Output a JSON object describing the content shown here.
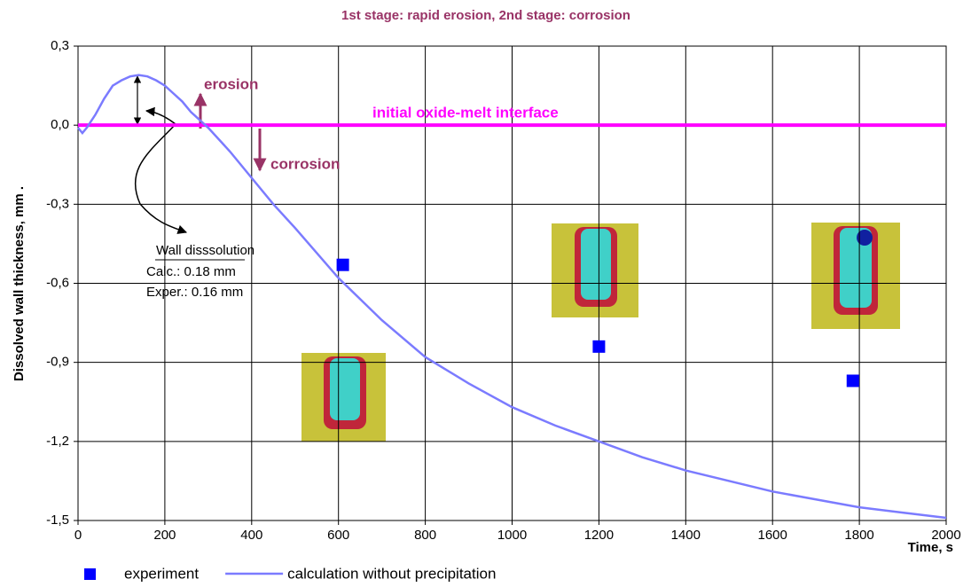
{
  "chart_data": {
    "type": "line",
    "title": "1st stage: rapid erosion,    2nd stage: corrosion",
    "y_label": "Dissolved wall thickness, mm   .",
    "x_label": "Time, s",
    "xlim": [
      0,
      2000
    ],
    "xticks": [
      0,
      200,
      400,
      600,
      800,
      1000,
      1200,
      1400,
      1600,
      1800,
      2000
    ],
    "ylim": [
      -1.5,
      0.3
    ],
    "yticks": [
      {
        "value": 0.3,
        "label": "0,3"
      },
      {
        "value": 0,
        "label": "0,0"
      },
      {
        "value": -0.3,
        "label": "-0,3"
      },
      {
        "value": -0.6,
        "label": "-0,6"
      },
      {
        "value": -0.9,
        "label": "-0,9"
      },
      {
        "value": -1.2,
        "label": "-1,2"
      },
      {
        "value": -1.5,
        "label": "-1,5"
      }
    ],
    "grid": true,
    "reference_line": {
      "value": 0,
      "label": "initial oxide-melt interface",
      "color": "#ff00ff"
    },
    "annotations": [
      "erosion",
      "corrosion",
      "Wall disssolution",
      "Calc.: 0.18 mm",
      "Exper.: 0.16 mm"
    ],
    "series": [
      {
        "name": "experiment",
        "type": "scatter",
        "color": "#0000ff",
        "x": [
          610,
          1200,
          1785
        ],
        "values": [
          -0.53,
          -0.84,
          -0.97
        ]
      },
      {
        "name": "calculation without precipitation",
        "type": "line",
        "color": "#7b7bff",
        "x": [
          0,
          10,
          20,
          40,
          60,
          80,
          100,
          120,
          140,
          160,
          180,
          200,
          220,
          240,
          260,
          280,
          300,
          350,
          400,
          450,
          500,
          600,
          700,
          800,
          900,
          1000,
          1100,
          1200,
          1300,
          1400,
          1500,
          1600,
          1700,
          1800,
          1900,
          2000
        ],
        "values": [
          -0.01,
          -0.03,
          -0.01,
          0.04,
          0.1,
          0.15,
          0.17,
          0.185,
          0.19,
          0.185,
          0.17,
          0.15,
          0.12,
          0.09,
          0.05,
          0.02,
          -0.01,
          -0.1,
          -0.2,
          -0.3,
          -0.39,
          -0.58,
          -0.74,
          -0.88,
          -0.98,
          -1.07,
          -1.14,
          -1.2,
          -1.26,
          -1.31,
          -1.35,
          -1.39,
          -1.42,
          -1.45,
          -1.47,
          -1.49
        ]
      }
    ]
  }
}
